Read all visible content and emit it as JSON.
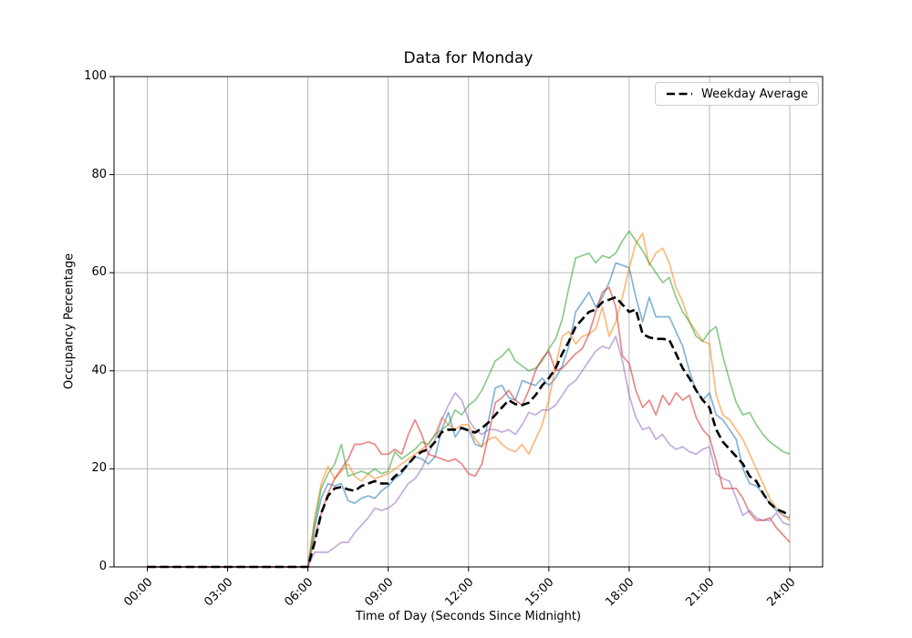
{
  "chart_data": {
    "type": "line",
    "title": "Data for Monday",
    "xlabel": "Time of Day (Seconds Since Midnight)",
    "ylabel": "Occupancy Percentage",
    "ylim": [
      0,
      100
    ],
    "xlim_hours": [
      0,
      24
    ],
    "grid": true,
    "grid_color": "#b0b0b0",
    "x_start_hour": 0,
    "x_step_hours": 0.25,
    "xticks": {
      "hours": [
        0,
        3,
        6,
        9,
        12,
        15,
        18,
        21,
        24
      ],
      "labels": [
        "00:00",
        "03:00",
        "06:00",
        "09:00",
        "12:00",
        "15:00",
        "18:00",
        "21:00",
        "24:00"
      ]
    },
    "yticks": {
      "values": [
        0,
        20,
        40,
        60,
        80,
        100
      ],
      "labels": [
        "0",
        "20",
        "40",
        "60",
        "80",
        "100"
      ]
    },
    "legend": {
      "position": "upper right",
      "entries": [
        {
          "label": "Weekday Average",
          "style": "dashed",
          "color": "#000000"
        }
      ]
    },
    "series": [
      {
        "name": "series-1",
        "color": "#1f77b4",
        "opacity": 0.55,
        "width": 1.7,
        "dash": null,
        "values": [
          0,
          0,
          0,
          0,
          0,
          0,
          0,
          0,
          0,
          0,
          0,
          0,
          0,
          0,
          0,
          0,
          0,
          0,
          0,
          0,
          0,
          0,
          0,
          0,
          0,
          8,
          14,
          17,
          16.5,
          17,
          13.5,
          13,
          14,
          14.5,
          14,
          15.5,
          16.5,
          18,
          19,
          21,
          22.5,
          22,
          21,
          22.5,
          28,
          31.5,
          26.5,
          28.5,
          28,
          25,
          24.5,
          30,
          36.5,
          37,
          34.5,
          34,
          38,
          37.5,
          37,
          38.5,
          37,
          38.5,
          41,
          45,
          52,
          54,
          56,
          53,
          55,
          58,
          62,
          61.5,
          61,
          55,
          50,
          55,
          51,
          51,
          51,
          48,
          45,
          40,
          36,
          34,
          35.5,
          31,
          30,
          28,
          26,
          20,
          17,
          16.5,
          15,
          13,
          11.5,
          10.5,
          10
        ]
      },
      {
        "name": "series-2",
        "color": "#ff7f0e",
        "opacity": 0.55,
        "width": 1.7,
        "dash": null,
        "values": [
          0,
          0,
          0,
          0,
          0,
          0,
          0,
          0,
          0,
          0,
          0,
          0,
          0,
          0,
          0,
          0,
          0,
          0,
          0,
          0,
          0,
          0,
          0,
          0,
          0,
          10,
          17,
          20.5,
          18,
          19.5,
          21,
          18.5,
          17.5,
          19,
          18,
          18.5,
          19,
          20,
          21,
          22,
          23,
          24,
          25,
          27,
          30.5,
          29,
          28,
          29,
          29,
          26,
          24.5,
          26,
          26.5,
          25,
          24,
          23.5,
          25,
          23,
          26,
          29,
          34,
          41,
          47,
          48,
          45.5,
          47,
          47.5,
          48.5,
          53,
          47,
          50,
          55,
          61,
          66,
          68,
          61.5,
          64,
          65,
          62,
          57,
          54,
          50,
          48,
          46,
          45.5,
          35,
          31,
          30,
          28,
          26,
          23,
          20,
          17,
          14,
          12,
          10.5,
          9.5
        ]
      },
      {
        "name": "series-3",
        "color": "#2ca02c",
        "opacity": 0.55,
        "width": 1.7,
        "dash": null,
        "values": [
          0,
          0,
          0,
          0,
          0,
          0,
          0,
          0,
          0,
          0,
          0,
          0,
          0,
          0,
          0,
          0,
          0,
          0,
          0,
          0,
          0,
          0,
          0,
          0,
          0,
          9,
          16,
          19,
          21,
          25,
          18.5,
          19,
          19.5,
          19,
          20,
          19,
          19.5,
          23.5,
          22,
          23,
          24,
          25.5,
          25,
          27,
          28,
          29,
          32,
          31,
          33,
          34,
          36,
          39,
          42,
          43,
          44.5,
          42,
          41,
          40,
          40.5,
          42,
          44.5,
          46.5,
          50.5,
          57,
          63,
          63.5,
          64,
          62,
          63.5,
          63,
          64,
          66.5,
          68.5,
          66.5,
          64.5,
          62,
          60,
          58,
          59,
          55,
          52,
          50,
          47,
          46,
          48,
          49,
          43,
          38,
          33.5,
          31,
          31.5,
          29,
          27,
          25.5,
          24.5,
          23.5,
          23
        ]
      },
      {
        "name": "series-4",
        "color": "#d62728",
        "opacity": 0.55,
        "width": 1.7,
        "dash": null,
        "values": [
          0,
          0,
          0,
          0,
          0,
          0,
          0,
          0,
          0,
          0,
          0,
          0,
          0,
          0,
          0,
          0,
          0,
          0,
          0,
          0,
          0,
          0,
          0,
          0,
          0,
          6,
          11,
          15,
          18,
          20,
          22,
          25,
          25,
          25.5,
          25,
          23,
          23,
          24,
          23,
          27,
          30,
          27,
          23,
          22.5,
          22,
          21.5,
          22,
          21,
          19,
          18.5,
          21,
          27,
          33.5,
          34.5,
          36,
          34,
          33,
          36,
          40,
          42.5,
          44,
          40,
          40.5,
          42,
          43.5,
          44.5,
          47.5,
          52,
          56,
          57,
          53,
          43,
          41.5,
          36,
          32.5,
          34,
          31,
          35,
          33,
          35.5,
          34,
          35,
          30.5,
          28,
          26.5,
          21.5,
          16,
          16,
          16,
          14,
          11,
          9.5,
          9.5,
          10,
          8,
          6.5,
          5
        ]
      },
      {
        "name": "series-5",
        "color": "#9467bd",
        "opacity": 0.55,
        "width": 1.7,
        "dash": null,
        "values": [
          0,
          0,
          0,
          0,
          0,
          0,
          0,
          0,
          0,
          0,
          0,
          0,
          0,
          0,
          0,
          0,
          0,
          0,
          0,
          0,
          0,
          0,
          0,
          0,
          0,
          3,
          3,
          3,
          4,
          5,
          5,
          7,
          8.5,
          10,
          12,
          11.5,
          12,
          13,
          15,
          17,
          18,
          20,
          23,
          26,
          30,
          33,
          35.5,
          34,
          30,
          28,
          27,
          28,
          28,
          27.5,
          28,
          27,
          29,
          31.5,
          31,
          32,
          32,
          33,
          35,
          37,
          38,
          40,
          42,
          44,
          45,
          44.5,
          47,
          42,
          35,
          30.5,
          28,
          28.5,
          26,
          27,
          25,
          24,
          24.5,
          23.5,
          23,
          24,
          24.5,
          19,
          18,
          17.5,
          14,
          10.5,
          11.5,
          10,
          9.5,
          9.5,
          11,
          9,
          8.5
        ]
      },
      {
        "name": "weekday-average",
        "color": "#000000",
        "opacity": 1,
        "width": 2.6,
        "dash": "9.5 4.5",
        "values": [
          0,
          0,
          0,
          0,
          0,
          0,
          0,
          0,
          0,
          0,
          0,
          0,
          0,
          0,
          0,
          0,
          0,
          0,
          0,
          0,
          0,
          0,
          0,
          0,
          0,
          5,
          11,
          14.5,
          16,
          16.3,
          15.8,
          15.5,
          16.5,
          17,
          17.5,
          17,
          17,
          18.5,
          19.5,
          21,
          22.5,
          23.5,
          24,
          25.5,
          27.5,
          28,
          28,
          28.3,
          27.8,
          27.4,
          28.3,
          29.5,
          31,
          32.5,
          34,
          33.2,
          33,
          33.5,
          35,
          37,
          38.5,
          40.5,
          43.5,
          46,
          49,
          50.5,
          52,
          52.5,
          54,
          54.5,
          55,
          53.5,
          52,
          52.5,
          47.5,
          46.8,
          46.5,
          46.5,
          46.3,
          43.5,
          40.5,
          38.5,
          36,
          34,
          32.5,
          28,
          25.5,
          24,
          22.5,
          21,
          18.5,
          17.5,
          15,
          13,
          11.8,
          11.2,
          10.5
        ]
      }
    ]
  }
}
